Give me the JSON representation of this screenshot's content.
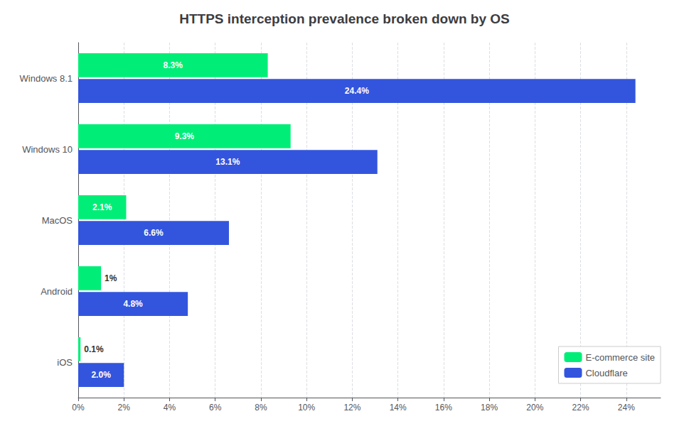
{
  "chart_data": {
    "type": "bar",
    "orientation": "horizontal",
    "title": "HTTPS interception prevalence broken down by OS",
    "categories": [
      "Windows 8.1",
      "Windows 10",
      "MacOS",
      "Android",
      "iOS"
    ],
    "series": [
      {
        "name": "E-commerce site",
        "color": "#00ee77",
        "values": [
          8.3,
          9.3,
          2.1,
          1.0,
          0.1
        ],
        "value_labels": [
          "8.3%",
          "9.3%",
          "2.1%",
          "1%",
          "0.1%"
        ]
      },
      {
        "name": "Cloudflare",
        "color": "#3355dd",
        "values": [
          24.4,
          13.1,
          6.6,
          4.8,
          2.0
        ],
        "value_labels": [
          "24.4%",
          "13.1%",
          "6.6%",
          "4.8%",
          "2.0%"
        ]
      }
    ],
    "xlim": [
      0,
      25.5
    ],
    "xticks": [
      {
        "value": 0,
        "label": "0%"
      },
      {
        "value": 2,
        "label": "2%"
      },
      {
        "value": 4,
        "label": "4%"
      },
      {
        "value": 6,
        "label": "6%"
      },
      {
        "value": 8,
        "label": "8%"
      },
      {
        "value": 10,
        "label": "10%"
      },
      {
        "value": 12,
        "label": "12%"
      },
      {
        "value": 14,
        "label": "14%"
      },
      {
        "value": 16,
        "label": "16%"
      },
      {
        "value": 18,
        "label": "18%"
      },
      {
        "value": 20,
        "label": "20%"
      },
      {
        "value": 22,
        "label": "22%"
      },
      {
        "value": 24,
        "label": "24%"
      }
    ],
    "grid": true,
    "legend": "lower right",
    "data_labels": true
  }
}
